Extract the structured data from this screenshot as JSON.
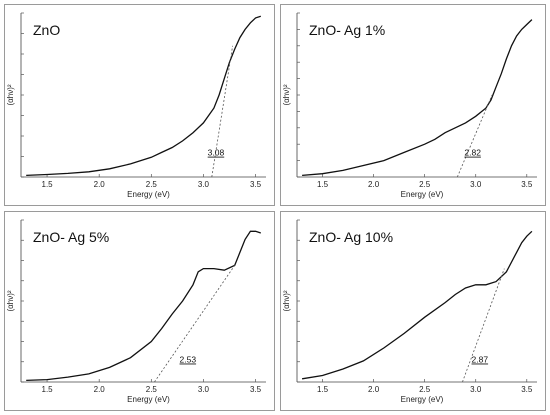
{
  "chart_data": [
    {
      "type": "line",
      "title": "ZnO",
      "xlabel": "Energy (eV)",
      "ylabel": "(αhν)²",
      "xlim": [
        1.25,
        3.6
      ],
      "ylim": [
        0,
        1
      ],
      "yticks_count": 8,
      "xticks": [
        1.5,
        2.0,
        2.5,
        3.0,
        3.5
      ],
      "xtick_labels": [
        "1.5",
        "2.0",
        "2.5",
        "3.0",
        "3.5"
      ],
      "series": [
        {
          "x": [
            1.3,
            1.5,
            1.7,
            1.9,
            2.1,
            2.3,
            2.5,
            2.6,
            2.7,
            2.8,
            2.9,
            3.0,
            3.1,
            3.15,
            3.2,
            3.25,
            3.3,
            3.35,
            3.4,
            3.45,
            3.5,
            3.55
          ],
          "y": [
            0.01,
            0.015,
            0.022,
            0.032,
            0.05,
            0.08,
            0.12,
            0.15,
            0.18,
            0.22,
            0.27,
            0.33,
            0.42,
            0.5,
            0.6,
            0.7,
            0.78,
            0.85,
            0.9,
            0.94,
            0.97,
            0.98
          ]
        }
      ],
      "tangent": {
        "x1": 3.08,
        "y1": 0.0,
        "x2": 3.28,
        "y2": 0.8
      },
      "annotation": {
        "text": "3.08",
        "x": 3.12,
        "y": 0.13
      }
    },
    {
      "type": "line",
      "title": "ZnO- Ag 1%",
      "xlabel": "Energy (eV)",
      "ylabel": "(αhν)²",
      "xlim": [
        1.25,
        3.6
      ],
      "ylim": [
        0,
        1
      ],
      "yticks_count": 10,
      "xticks": [
        1.5,
        2.0,
        2.5,
        3.0,
        3.5
      ],
      "xtick_labels": [
        "1.5",
        "2.0",
        "2.5",
        "3.0",
        "3.5"
      ],
      "series": [
        {
          "x": [
            1.3,
            1.5,
            1.7,
            1.9,
            2.1,
            2.3,
            2.5,
            2.6,
            2.7,
            2.8,
            2.9,
            3.0,
            3.1,
            3.15,
            3.2,
            3.25,
            3.3,
            3.35,
            3.4,
            3.45,
            3.5,
            3.55
          ],
          "y": [
            0.01,
            0.02,
            0.04,
            0.07,
            0.1,
            0.15,
            0.2,
            0.23,
            0.27,
            0.3,
            0.33,
            0.37,
            0.42,
            0.47,
            0.55,
            0.63,
            0.72,
            0.8,
            0.86,
            0.9,
            0.93,
            0.96
          ]
        }
      ],
      "tangent": {
        "x1": 2.82,
        "y1": 0.0,
        "x2": 3.16,
        "y2": 0.5
      },
      "annotation": {
        "text": "2.82",
        "x": 2.97,
        "y": 0.13
      }
    },
    {
      "type": "line",
      "title": "ZnO- Ag 5%",
      "xlabel": "Energy (eV)",
      "ylabel": "(αhν)²",
      "xlim": [
        1.25,
        3.6
      ],
      "ylim": [
        0,
        1
      ],
      "yticks_count": 8,
      "xticks": [
        1.5,
        2.0,
        2.5,
        3.0,
        3.5
      ],
      "xtick_labels": [
        "1.5",
        "2.0",
        "2.5",
        "3.0",
        "3.5"
      ],
      "series": [
        {
          "x": [
            1.3,
            1.5,
            1.7,
            1.9,
            2.1,
            2.3,
            2.5,
            2.6,
            2.7,
            2.8,
            2.9,
            2.95,
            3.0,
            3.1,
            3.2,
            3.3,
            3.35,
            3.4,
            3.45,
            3.5,
            3.55
          ],
          "y": [
            0.01,
            0.015,
            0.03,
            0.05,
            0.09,
            0.15,
            0.25,
            0.33,
            0.42,
            0.5,
            0.6,
            0.68,
            0.7,
            0.7,
            0.69,
            0.72,
            0.8,
            0.88,
            0.93,
            0.93,
            0.92
          ]
        }
      ],
      "tangent": {
        "x1": 2.53,
        "y1": 0.0,
        "x2": 3.3,
        "y2": 0.72
      },
      "annotation": {
        "text": "2.53",
        "x": 2.85,
        "y": 0.12
      }
    },
    {
      "type": "line",
      "title": "ZnO- Ag 10%",
      "xlabel": "Energy (eV)",
      "ylabel": "(αhν)²",
      "xlim": [
        1.25,
        3.6
      ],
      "ylim": [
        0,
        1
      ],
      "yticks_count": 8,
      "xticks": [
        1.5,
        2.0,
        2.5,
        3.0,
        3.5
      ],
      "xtick_labels": [
        "1.5",
        "2.0",
        "2.5",
        "3.0",
        "3.5"
      ],
      "series": [
        {
          "x": [
            1.3,
            1.5,
            1.7,
            1.9,
            2.1,
            2.3,
            2.5,
            2.7,
            2.8,
            2.9,
            3.0,
            3.1,
            3.2,
            3.3,
            3.4,
            3.45,
            3.5,
            3.55
          ],
          "y": [
            0.02,
            0.04,
            0.08,
            0.13,
            0.21,
            0.3,
            0.4,
            0.49,
            0.54,
            0.58,
            0.6,
            0.6,
            0.62,
            0.68,
            0.8,
            0.86,
            0.9,
            0.93
          ]
        }
      ],
      "tangent": {
        "x1": 2.87,
        "y1": 0.0,
        "x2": 3.28,
        "y2": 0.7
      },
      "annotation": {
        "text": "2.87",
        "x": 3.04,
        "y": 0.12
      }
    }
  ]
}
